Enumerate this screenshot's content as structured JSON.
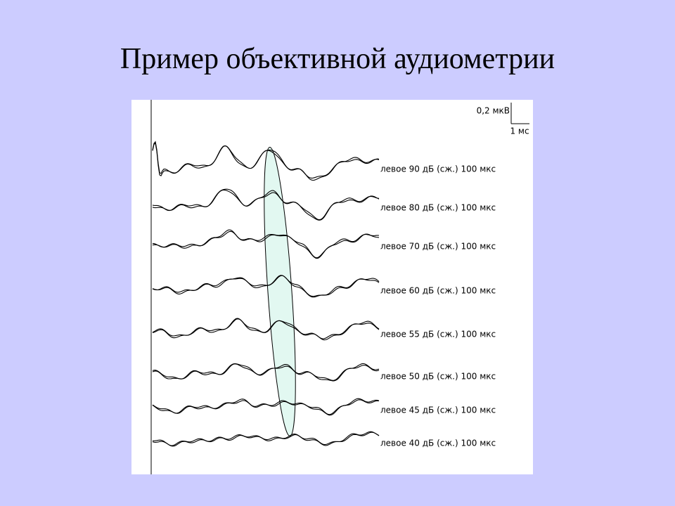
{
  "slide": {
    "title": "Пример объективной аудиометрии",
    "figure": {
      "scale": {
        "amplitude": "0,2 мкВ",
        "time": "1 мс"
      },
      "traces": [
        {
          "label": "левое 90 дБ (сж.) 100 мкс"
        },
        {
          "label": "левое 80 дБ (сж.) 100 мкс"
        },
        {
          "label": "левое 70 дБ (сж.) 100 мкс"
        },
        {
          "label": "левое 60 дБ (сж.) 100 мкс"
        },
        {
          "label": "левое 55 дБ (сж.) 100 мкс"
        },
        {
          "label": "левое 50 дБ (сж.) 100 мкс"
        },
        {
          "label": "левое 45 дБ (сж.) 100 мкс"
        },
        {
          "label": "левое 40 дБ (сж.) 100 мкс"
        }
      ]
    }
  }
}
